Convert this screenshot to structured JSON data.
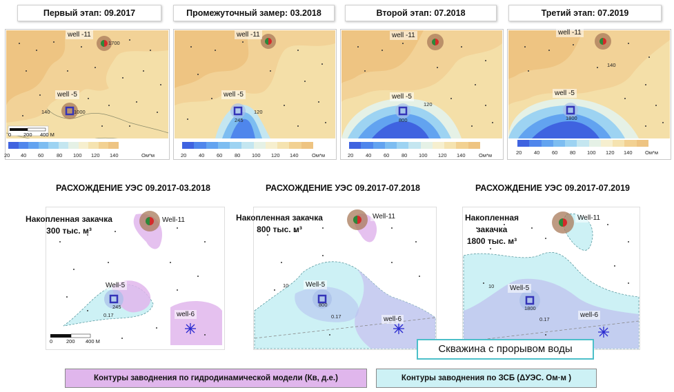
{
  "top_panels": [
    {
      "title": "Первый этап: 09.2017",
      "well_top": "well -11",
      "well_bottom": "well -5",
      "value_top": "1700",
      "value_bottom": "1000",
      "contour": "140"
    },
    {
      "title": "Промежуточный замер: 03.2018",
      "well_top": "well -11",
      "well_bottom": "well -5",
      "value_bottom": "245",
      "contour": "120"
    },
    {
      "title": "Второй этап: 07.2018",
      "well_top": "well -11",
      "well_bottom": "well -5",
      "value_bottom": "800",
      "contour": "120"
    },
    {
      "title": "Третий этап: 07.2019",
      "well_top": "well -11",
      "well_bottom": "well -5",
      "value_bottom": "1800",
      "contour": "140"
    }
  ],
  "colorbar": {
    "ticks": [
      "20",
      "40",
      "60",
      "80",
      "100",
      "120",
      "140"
    ],
    "unit": "Ом*м",
    "colors": [
      "#3f63e0",
      "#4f86ec",
      "#62a3f0",
      "#7dbdf1",
      "#9dd3f2",
      "#c4e6f0",
      "#e5f1e6",
      "#f6efcf",
      "#f5e3b0",
      "#f2d192",
      "#eec482"
    ]
  },
  "scale_bar": {
    "labels": [
      "0",
      "200",
      "400 М"
    ]
  },
  "bottom_panels": [
    {
      "title": "РАСХОЖДЕНИЕ УЭС 09.2017-03.2018",
      "injection_lines": [
        "Накопленная закачка",
        "300 тыс. м³"
      ],
      "well_top": "Well-11",
      "well_mid": "Well-5",
      "well_low": "well-6",
      "value": "245",
      "contour": "0.17"
    },
    {
      "title": "РАСХОЖДЕНИЕ УЭС 09.2017-07.2018",
      "injection_lines": [
        "Накопленная закачка",
        "800 тыс. м³"
      ],
      "well_top": "Well-11",
      "well_mid": "Well-5",
      "well_low": "well-6",
      "value": "800",
      "contour": "0.17",
      "contour2": "10"
    },
    {
      "title": "РАСХОЖДЕНИЕ УЭС 09.2017-07.2019",
      "injection_lines": [
        "Накопленная",
        "закачка",
        "1800 тыс. м³"
      ],
      "well_top": "Well-11",
      "well_mid": "Well-5",
      "well_low": "well-6",
      "value": "1800",
      "contour": "0.17",
      "contour2": "10"
    }
  ],
  "breakthrough_label": "Скважина с прорывом воды",
  "legend": {
    "hydro": "Контуры заводнения  по гидродинамической  модели (Кв, д.е.)",
    "zsb": "Контуры заводнения по ЗСБ (ΔУЭС. Ом·м )",
    "hydro_color": "#e0b6ec",
    "zsb_color": "#cdf1f5"
  }
}
